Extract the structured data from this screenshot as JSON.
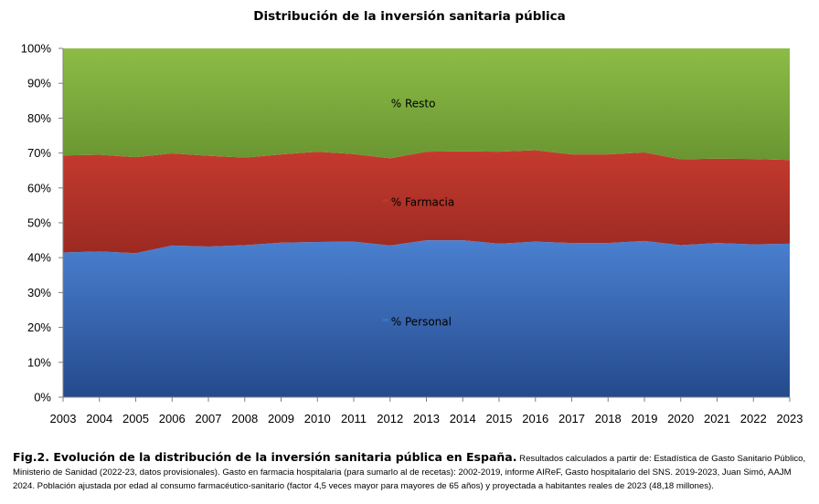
{
  "chart_data": {
    "type": "area",
    "stacked": true,
    "percent": true,
    "title": "Distribución de la inversión sanitaria pública",
    "x": [
      "2003",
      "2004",
      "2005",
      "2006",
      "2007",
      "2008",
      "2009",
      "2010",
      "2011",
      "2012",
      "2013",
      "2014",
      "2015",
      "2016",
      "2017",
      "2018",
      "2019",
      "2020",
      "2021",
      "2022",
      "2023"
    ],
    "y_ticks": [
      "0%",
      "10%",
      "20%",
      "30%",
      "40%",
      "50%",
      "60%",
      "70%",
      "80%",
      "90%",
      "100%"
    ],
    "ylim": [
      0,
      100
    ],
    "grid": false,
    "series": [
      {
        "name": "% Personal",
        "color": "#3f74c4",
        "values": [
          41.5,
          41.8,
          41.3,
          43.5,
          43.2,
          43.6,
          44.3,
          44.5,
          44.6,
          43.5,
          45.0,
          45.0,
          44.0,
          44.6,
          44.2,
          44.2,
          44.8,
          43.6,
          44.2,
          43.8,
          44.0
        ]
      },
      {
        "name": "% Farmacia",
        "color": "#c0392b",
        "values": [
          27.8,
          27.7,
          27.5,
          26.4,
          26.0,
          25.1,
          25.3,
          25.9,
          25.1,
          25.0,
          25.4,
          25.5,
          26.4,
          26.2,
          25.4,
          25.4,
          25.4,
          24.6,
          24.2,
          24.5,
          24.0
        ]
      },
      {
        "name": "% Resto",
        "color": "#80ad3c",
        "values": [
          30.7,
          30.5,
          31.2,
          30.1,
          30.8,
          31.3,
          30.4,
          29.6,
          30.3,
          31.5,
          29.6,
          29.5,
          29.6,
          29.2,
          30.4,
          30.4,
          29.8,
          31.8,
          31.6,
          31.7,
          32.0
        ]
      }
    ]
  },
  "caption": {
    "bold": "Fig.2. Evolución de la distribución de la inversión sanitaria pública en España.",
    "text": " Resultados calculados a partir de: Estadística de Gasto Sanitario Público, Ministerio de Sanidad (2022-23, datos provisionales). Gasto en farmacia hospitalaria (para sumarlo al de recetas): 2002-2019, informe AIReF, Gasto hospitalario del SNS. 2019-2023, Juan Simó, AAJM 2024. Población ajustada por edad al consumo farmacéutico-sanitario (factor 4,5 veces mayor para mayores de 65 años) y proyectada a habitantes reales de 2023 (48,18 millones)."
  }
}
